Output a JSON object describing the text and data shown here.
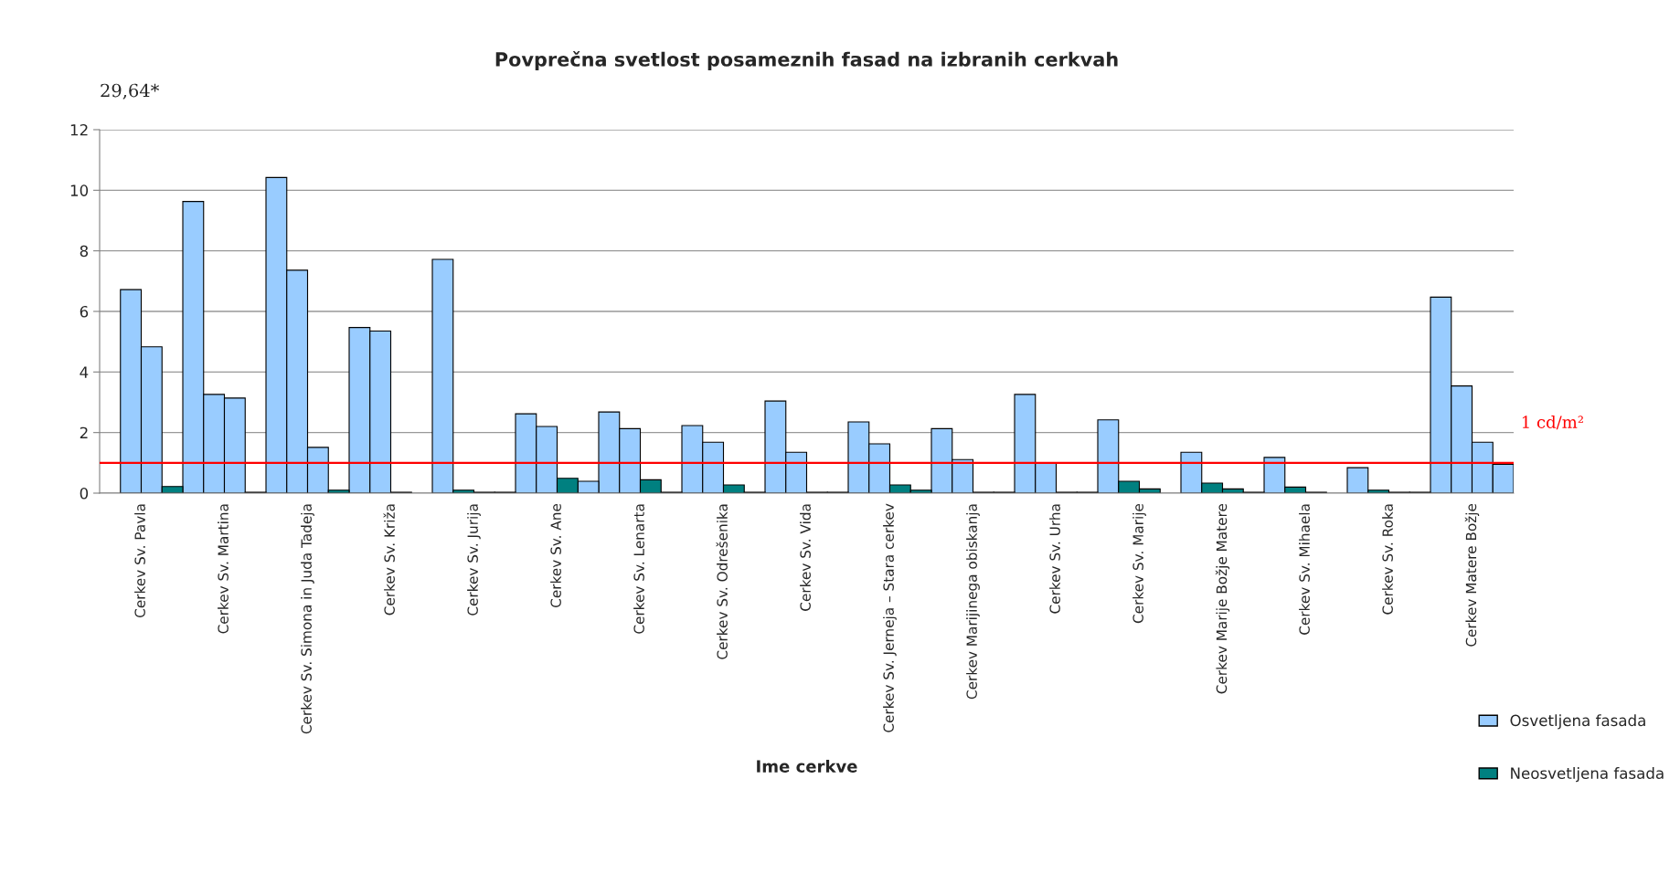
{
  "chart_data": {
    "type": "bar",
    "title": "Povprečna svetlost posameznih fasad na izbranih cerkvah",
    "xlabel": "Ime cerkve",
    "categories": [
      "Cerkev Sv. Pavla",
      "Cerkev Sv. Martina",
      "Cerkev Sv. Simona in Juda Tadeja",
      "Cerkev Sv. Križa",
      "Cerkev Sv. Jurija",
      "Cerkev Sv. Ane",
      "Cerkev Sv. Lenarta",
      "Cerkev Sv. Odrešenika",
      "Cerkev Sv. Vida",
      "Cerkev Sv. Jerneja – Stara cerkev",
      "Cerkev Marijinega obiskanja",
      "Cerkev Sv. Urha",
      "Cerkev Sv. Marije",
      "Cerkev Marije Božje Matere",
      "Cerkev Sv. Mihaela",
      "Cerkev Sv. Roka",
      "Cerkev Matere Božje"
    ],
    "series": [
      {
        "name": "Osvetljena fasada",
        "color": "#99ccff",
        "values": [
          null,
          9.63,
          10.42,
          5.47,
          7.72,
          2.62,
          2.68,
          2.23,
          3.04,
          2.35,
          2.13,
          3.26,
          2.42,
          1.35,
          1.18,
          0.84,
          6.47
        ]
      },
      {
        "color": "#99ccff",
        "values": [
          6.72,
          3.26,
          7.36,
          5.35,
          null,
          2.2,
          2.13,
          1.68,
          1.35,
          1.63,
          1.11,
          0.99,
          null,
          null,
          null,
          null,
          3.54
        ]
      },
      {
        "color": "#99ccff",
        "values": [
          4.83,
          3.14,
          1.51,
          null,
          null,
          null,
          null,
          null,
          null,
          null,
          null,
          null,
          null,
          null,
          null,
          null,
          1.68
        ]
      },
      {
        "color": "#99ccff",
        "values": [
          null,
          null,
          null,
          null,
          null,
          0.39,
          null,
          null,
          null,
          null,
          null,
          null,
          null,
          null,
          null,
          null,
          0.95
        ]
      },
      {
        "name": "Neosvetljena fasada",
        "color": "#008080",
        "values": [
          null,
          null,
          null,
          null,
          0.1,
          null,
          null,
          null,
          null,
          null,
          null,
          null,
          0.39,
          0.33,
          0.2,
          0.1,
          null
        ]
      },
      {
        "color": "#008080",
        "values": [
          null,
          null,
          null,
          0.03,
          0.03,
          0.49,
          0.44,
          0.27,
          0.03,
          0.27,
          0.03,
          0.03,
          0.14,
          0.14,
          0.03,
          0.03,
          null
        ]
      },
      {
        "color": "#008080",
        "values": [
          0.22,
          0.03,
          0.1,
          null,
          0.03,
          null,
          0.03,
          0.03,
          0.03,
          0.1,
          0.03,
          0.03,
          null,
          0.03,
          null,
          0.03,
          null
        ]
      }
    ],
    "ylim": [
      0,
      12
    ],
    "yticks": [
      0,
      2,
      4,
      6,
      8,
      10,
      12
    ],
    "grid": "y",
    "legend": "bottom right",
    "ref_lines": [
      {
        "axis": "y",
        "value": 1,
        "label": "1 cd/m²",
        "color": "#ff0000"
      }
    ],
    "annotations": [
      "29,64*"
    ]
  }
}
